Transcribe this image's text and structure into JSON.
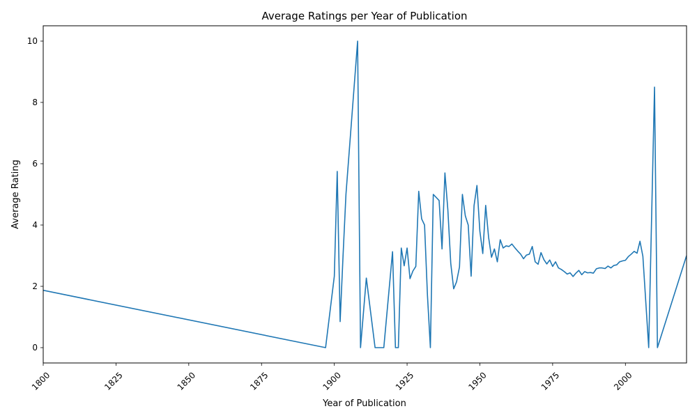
{
  "chart_data": {
    "type": "line",
    "title": "Average Ratings per Year of Publication",
    "xlabel": "Year of Publication",
    "ylabel": "Average Rating",
    "xlim": [
      1800,
      2021
    ],
    "ylim": [
      -0.5,
      10.5
    ],
    "xticks": [
      1800,
      1825,
      1850,
      1875,
      1900,
      1925,
      1950,
      1975,
      2000
    ],
    "yticks": [
      0,
      2,
      4,
      6,
      8,
      10
    ],
    "grid": false,
    "color": "#1f77b4",
    "series": [
      {
        "x": [
          1800,
          1897,
          1900,
          1901,
          1902,
          1903,
          1904,
          1906,
          1908,
          1909,
          1911,
          1914,
          1917,
          1920,
          1921,
          1922,
          1923,
          1924,
          1925,
          1926,
          1927,
          1928,
          1929,
          1930,
          1931,
          1932,
          1933,
          1934,
          1936,
          1937,
          1938,
          1939,
          1940,
          1941,
          1942,
          1943,
          1944,
          1945,
          1946,
          1947,
          1948,
          1949,
          1950,
          1951,
          1952,
          1953,
          1954,
          1955,
          1956,
          1957,
          1958,
          1959,
          1960,
          1961,
          1962,
          1963,
          1964,
          1965,
          1966,
          1967,
          1968,
          1969,
          1970,
          1971,
          1972,
          1973,
          1974,
          1975,
          1976,
          1977,
          1978,
          1979,
          1980,
          1981,
          1982,
          1983,
          1984,
          1985,
          1986,
          1987,
          1988,
          1989,
          1990,
          1991,
          1992,
          1993,
          1994,
          1995,
          1996,
          1997,
          1998,
          1999,
          2000,
          2001,
          2002,
          2003,
          2004,
          2005,
          2006,
          2008,
          2010,
          2011,
          2021
        ],
        "y": [
          1.87,
          0,
          2.33,
          5.75,
          0.85,
          3.0,
          5.0,
          7.5,
          10.0,
          0,
          2.27,
          0,
          0,
          3.13,
          0,
          0,
          3.25,
          2.67,
          3.25,
          2.25,
          2.5,
          2.65,
          5.1,
          4.2,
          4.0,
          1.7,
          0,
          5.0,
          4.8,
          3.22,
          5.7,
          4.5,
          2.75,
          1.92,
          2.15,
          2.63,
          5.0,
          4.3,
          4.0,
          2.33,
          4.63,
          5.29,
          3.8,
          3.07,
          4.64,
          3.6,
          2.95,
          3.22,
          2.8,
          3.52,
          3.25,
          3.32,
          3.3,
          3.38,
          3.26,
          3.15,
          3.05,
          2.9,
          3.02,
          3.05,
          3.3,
          2.8,
          2.72,
          3.1,
          2.87,
          2.73,
          2.86,
          2.65,
          2.8,
          2.6,
          2.55,
          2.48,
          2.4,
          2.44,
          2.32,
          2.43,
          2.52,
          2.38,
          2.48,
          2.44,
          2.45,
          2.43,
          2.57,
          2.6,
          2.6,
          2.58,
          2.66,
          2.6,
          2.68,
          2.7,
          2.8,
          2.83,
          2.85,
          2.97,
          3.05,
          3.14,
          3.08,
          3.47,
          2.98,
          0,
          8.5,
          0,
          3.0
        ]
      }
    ]
  }
}
